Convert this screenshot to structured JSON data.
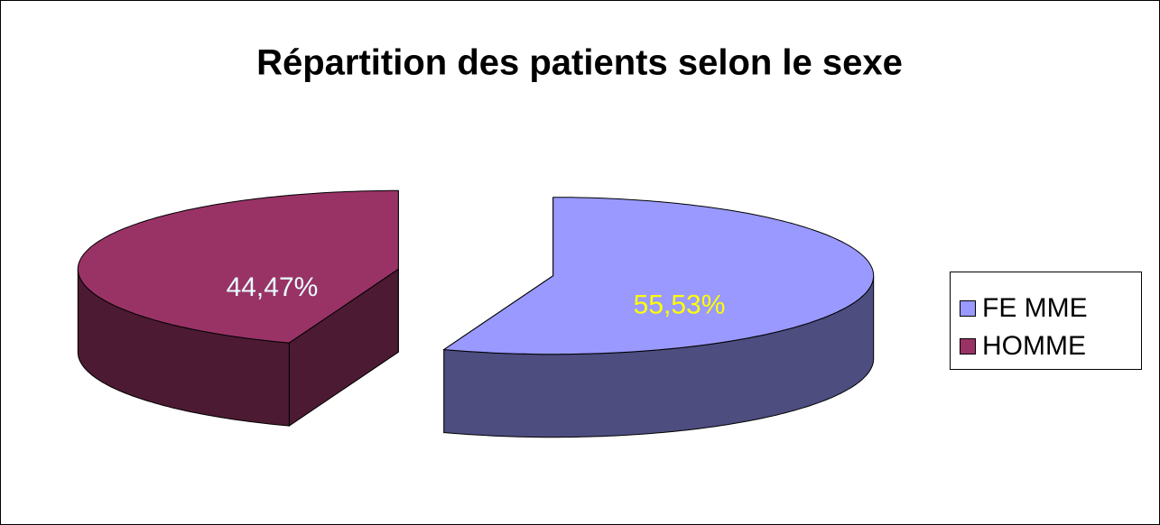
{
  "chart_data": {
    "type": "pie",
    "title": "Répartition des patients selon le sexe",
    "categories": [
      "FE MME",
      "HOMME"
    ],
    "values": [
      55.53,
      44.47
    ],
    "value_labels": [
      "55,53%",
      "44,47%"
    ],
    "colors": [
      "#9999ff",
      "#993366"
    ],
    "label_colors": [
      "#ffff00",
      "#e8ffff"
    ],
    "three_d": true,
    "exploded": true,
    "legend": "right"
  }
}
